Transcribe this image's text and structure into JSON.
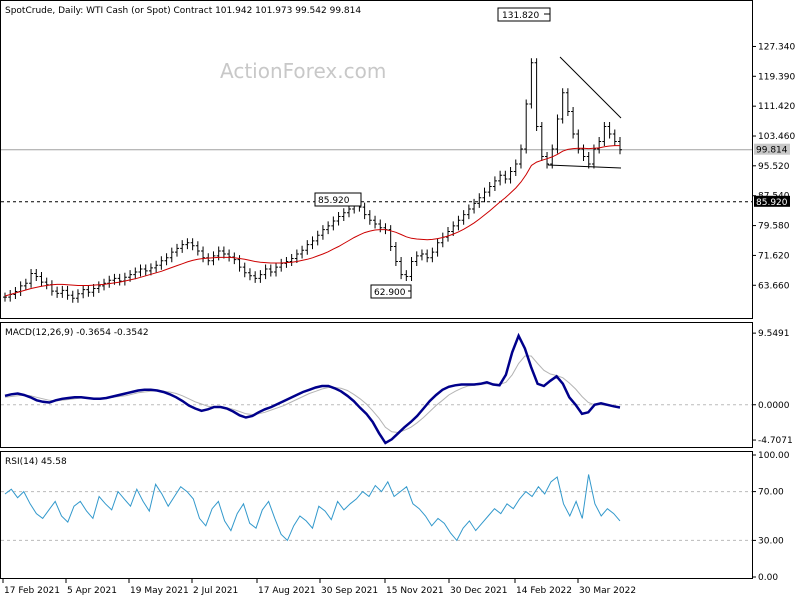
{
  "window": {
    "title": "SpotCrude, Daily:  WTI Cash (or Spot) Contract  101.942 101.973 99.542 99.814",
    "watermark": "ActionForex.com"
  },
  "colors": {
    "price": "#000000",
    "ma": "#cc0000",
    "macd": "#00008b",
    "signal": "#b4b4b4",
    "rsi": "#3399cc",
    "grid": "#c0c0c0"
  },
  "chart_data": [
    {
      "type": "line",
      "title": "SpotCrude, Daily:  WTI Cash (or Spot) Contract  101.942 101.973 99.542 99.814",
      "ylim": [
        56.0,
        136.0
      ],
      "y_ticks": [
        "127.340",
        "119.390",
        "111.420",
        "103.460",
        "95.520",
        "87.540",
        "79.580",
        "71.620",
        "63.660"
      ],
      "y_tick_values": [
        127.34,
        119.39,
        111.42,
        103.46,
        95.52,
        87.54,
        79.58,
        71.62,
        63.66
      ],
      "x_ticks": [
        "17 Feb 2021",
        "5 Apr 2021",
        "19 May 2021",
        "2 Jul 2021",
        "17 Aug 2021",
        "30 Sep 2021",
        "15 Nov 2021",
        "30 Dec 2021",
        "14 Feb 2022",
        "30 Mar 2022"
      ],
      "current_price": "99.814",
      "current_price_value": 99.814,
      "reference_level": "85.920",
      "reference_level_value": 85.92,
      "annotations": [
        {
          "text": "131.820",
          "value": 131.82
        },
        {
          "text": "85.920",
          "value": 85.92
        },
        {
          "text": "62.900",
          "value": 62.9
        }
      ],
      "series": [
        {
          "name": "Close",
          "values": [
            60.5,
            61.2,
            62.0,
            63.5,
            64.2,
            66.8,
            66.0,
            64.5,
            63.8,
            62.1,
            61.5,
            62.3,
            61.0,
            60.2,
            61.4,
            62.5,
            61.8,
            62.8,
            63.5,
            64.2,
            65.0,
            65.5,
            64.8,
            65.8,
            66.5,
            67.2,
            68.0,
            67.5,
            68.3,
            69.0,
            70.2,
            71.0,
            72.5,
            73.5,
            74.5,
            75.0,
            74.2,
            72.8,
            71.0,
            70.2,
            71.5,
            72.8,
            72.0,
            71.2,
            70.5,
            68.5,
            67.0,
            66.2,
            65.5,
            66.5,
            68.0,
            67.2,
            68.5,
            69.5,
            70.0,
            70.8,
            72.0,
            73.0,
            74.5,
            75.5,
            77.0,
            78.5,
            79.5,
            80.8,
            82.0,
            83.0,
            84.0,
            85.0,
            84.5,
            82.5,
            81.0,
            80.0,
            79.0,
            78.5,
            74.0,
            70.0,
            66.5,
            66.0,
            70.0,
            71.5,
            72.0,
            71.0,
            72.5,
            75.0,
            76.5,
            78.0,
            79.5,
            81.0,
            82.5,
            84.0,
            85.5,
            87.0,
            88.5,
            90.0,
            91.5,
            93.0,
            92.0,
            94.0,
            96.0,
            100.0,
            112.0,
            123.0,
            106.0,
            98.0,
            96.0,
            100.0,
            108.0,
            115.0,
            110.0,
            104.0,
            100.0,
            98.0,
            96.0,
            100.0,
            102.0,
            106.0,
            104.0,
            102.0,
            99.8
          ]
        },
        {
          "name": "MA",
          "values": [
            60.8,
            61.2,
            61.6,
            62.0,
            62.4,
            62.8,
            63.1,
            63.4,
            63.6,
            63.8,
            63.9,
            63.9,
            63.8,
            63.7,
            63.6,
            63.6,
            63.6,
            63.7,
            63.8,
            63.9,
            64.1,
            64.3,
            64.5,
            64.8,
            65.1,
            65.4,
            65.8,
            66.2,
            66.6,
            67.0,
            67.4,
            67.9,
            68.4,
            68.9,
            69.4,
            69.9,
            70.3,
            70.6,
            70.8,
            70.9,
            71.0,
            71.1,
            71.1,
            71.1,
            71.0,
            70.8,
            70.6,
            70.3,
            70.0,
            69.8,
            69.7,
            69.6,
            69.6,
            69.6,
            69.7,
            69.8,
            70.0,
            70.3,
            70.6,
            71.0,
            71.5,
            72.0,
            72.6,
            73.3,
            74.0,
            74.8,
            75.6,
            76.4,
            77.1,
            77.7,
            78.1,
            78.4,
            78.5,
            78.5,
            78.2,
            77.8,
            77.2,
            76.6,
            76.2,
            76.0,
            75.9,
            75.8,
            75.9,
            76.1,
            76.4,
            76.8,
            77.3,
            77.9,
            78.6,
            79.4,
            80.3,
            81.3,
            82.4,
            83.5,
            84.7,
            85.9,
            87.0,
            88.3,
            89.6,
            91.2,
            93.2,
            95.6,
            96.5,
            97.0,
            97.4,
            97.9,
            98.6,
            99.4,
            99.9,
            100.1,
            100.2,
            100.2,
            100.1,
            100.2,
            100.3,
            100.6,
            100.8,
            100.9,
            100.9
          ]
        }
      ]
    },
    {
      "type": "line",
      "title": "MACD(12,26,9) -0.3654 -0.3542",
      "ylim": [
        -5.5,
        10.5
      ],
      "y_ticks": [
        "9.5491",
        "0.0000",
        "-4.7071"
      ],
      "y_tick_values": [
        9.5491,
        0.0,
        -4.7071
      ],
      "series": [
        {
          "name": "MACD",
          "values": [
            1.2,
            1.4,
            1.5,
            1.3,
            1.0,
            0.6,
            0.4,
            0.3,
            0.6,
            0.8,
            0.9,
            1.0,
            1.0,
            0.9,
            0.8,
            0.8,
            0.9,
            1.1,
            1.3,
            1.5,
            1.7,
            1.9,
            2.0,
            2.0,
            1.9,
            1.7,
            1.4,
            1.0,
            0.5,
            -0.1,
            -0.5,
            -0.8,
            -0.6,
            -0.3,
            -0.3,
            -0.5,
            -0.9,
            -1.4,
            -1.7,
            -1.5,
            -1.0,
            -0.6,
            -0.3,
            0.1,
            0.5,
            0.9,
            1.3,
            1.7,
            2.0,
            2.3,
            2.5,
            2.5,
            2.2,
            1.8,
            1.2,
            0.5,
            -0.4,
            -1.2,
            -2.3,
            -3.8,
            -5.1,
            -4.6,
            -3.8,
            -3.0,
            -2.3,
            -1.5,
            -0.5,
            0.5,
            1.3,
            2.0,
            2.4,
            2.6,
            2.7,
            2.7,
            2.7,
            2.8,
            3.0,
            2.7,
            2.6,
            4.0,
            7.0,
            9.2,
            7.5,
            5.0,
            2.8,
            2.5,
            3.2,
            3.8,
            2.8,
            1.0,
            0.0,
            -1.2,
            -1.0,
            0.0,
            0.2,
            0.0,
            -0.2,
            -0.37
          ]
        },
        {
          "name": "Signal",
          "values": [
            1.0,
            1.1,
            1.2,
            1.3,
            1.2,
            1.0,
            0.8,
            0.6,
            0.5,
            0.6,
            0.7,
            0.8,
            0.9,
            0.9,
            0.9,
            0.9,
            0.9,
            1.0,
            1.1,
            1.2,
            1.4,
            1.6,
            1.7,
            1.8,
            1.9,
            1.8,
            1.7,
            1.5,
            1.2,
            0.8,
            0.4,
            0.1,
            -0.2,
            -0.3,
            -0.3,
            -0.4,
            -0.6,
            -0.9,
            -1.2,
            -1.3,
            -1.2,
            -1.0,
            -0.7,
            -0.4,
            -0.1,
            0.3,
            0.7,
            1.1,
            1.5,
            1.8,
            2.1,
            2.3,
            2.3,
            2.2,
            1.9,
            1.4,
            0.8,
            0.1,
            -0.8,
            -1.8,
            -3.0,
            -3.6,
            -3.7,
            -3.4,
            -3.0,
            -2.4,
            -1.7,
            -0.9,
            -0.1,
            0.6,
            1.3,
            1.8,
            2.2,
            2.5,
            2.6,
            2.7,
            2.8,
            2.8,
            2.7,
            3.0,
            4.0,
            5.5,
            6.5,
            6.5,
            5.5,
            4.6,
            4.1,
            3.9,
            3.6,
            2.9,
            2.1,
            1.1,
            0.3,
            0.0,
            0.0,
            -0.1,
            -0.2,
            -0.35
          ]
        }
      ]
    },
    {
      "type": "line",
      "title": "RSI(14) 45.58",
      "ylim": [
        0,
        100
      ],
      "y_ticks": [
        "100.00",
        "70.00",
        "30.00",
        "0.00"
      ],
      "y_tick_values": [
        100,
        70,
        30,
        0
      ],
      "series": [
        {
          "name": "RSI",
          "values": [
            68,
            72,
            65,
            70,
            60,
            52,
            48,
            55,
            62,
            50,
            45,
            58,
            62,
            54,
            48,
            66,
            60,
            55,
            70,
            64,
            58,
            72,
            62,
            54,
            76,
            68,
            58,
            66,
            74,
            70,
            64,
            48,
            42,
            56,
            62,
            46,
            38,
            52,
            60,
            44,
            40,
            55,
            62,
            48,
            35,
            30,
            42,
            50,
            46,
            40,
            58,
            54,
            47,
            62,
            55,
            60,
            64,
            70,
            66,
            75,
            70,
            78,
            66,
            70,
            74,
            60,
            56,
            50,
            42,
            48,
            44,
            36,
            30,
            40,
            46,
            38,
            44,
            50,
            56,
            52,
            60,
            56,
            64,
            70,
            66,
            74,
            68,
            78,
            82,
            60,
            50,
            62,
            48,
            84,
            60,
            50,
            56,
            52,
            46
          ]
        }
      ]
    }
  ]
}
